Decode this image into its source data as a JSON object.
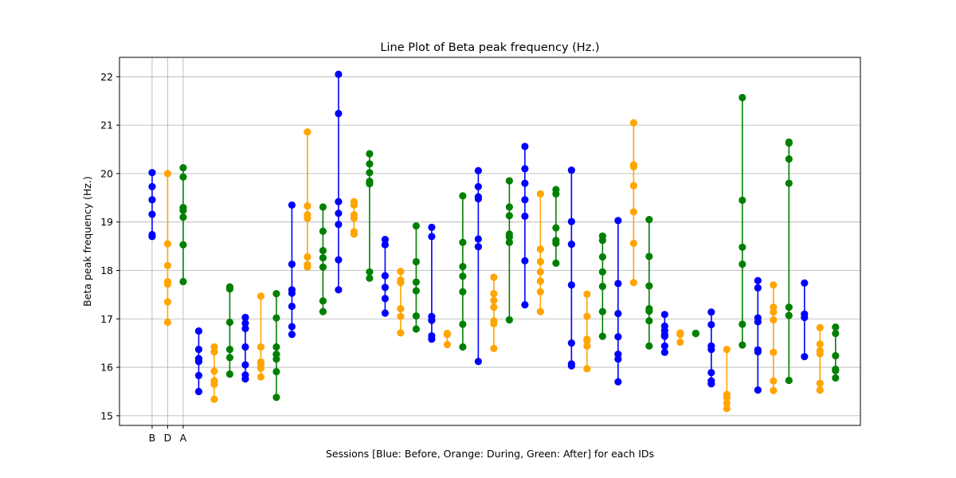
{
  "chart_data": {
    "type": "line",
    "title": "Line Plot of Beta peak frequency (Hz.)",
    "xlabel": "Sessions [Blue: Before, Orange: During, Green: After] for each IDs",
    "ylabel": "Beta peak frequency (Hz.)",
    "ylim": [
      14.8,
      22.4
    ],
    "xlim": [
      -2.1,
      45.6
    ],
    "yticks": [
      15,
      16,
      17,
      18,
      19,
      20,
      21,
      22
    ],
    "xticks": [
      {
        "x": 0,
        "label": "B"
      },
      {
        "x": 1,
        "label": "D"
      },
      {
        "x": 2,
        "label": "A"
      }
    ],
    "grid": true,
    "colors": {
      "Before": "#0000ff",
      "During": "#ffa500",
      "After": "#008000"
    },
    "groups": [
      {
        "x": 0,
        "session": "Before",
        "values": [
          20.02,
          19.73,
          19.46,
          19.16,
          18.74,
          18.7
        ]
      },
      {
        "x": 1,
        "session": "During",
        "values": [
          20.0,
          18.55,
          18.1,
          17.77,
          17.72,
          17.35,
          16.93
        ]
      },
      {
        "x": 2,
        "session": "After",
        "values": [
          20.12,
          19.93,
          19.3,
          19.24,
          19.1,
          18.53,
          17.77
        ]
      },
      {
        "x": 3,
        "session": "Before",
        "values": [
          16.75,
          16.37,
          16.18,
          16.12,
          15.83,
          15.5
        ]
      },
      {
        "x": 4,
        "session": "During",
        "values": [
          16.42,
          16.32,
          15.92,
          15.72,
          15.65,
          15.34
        ]
      },
      {
        "x": 5,
        "session": "After",
        "values": [
          17.66,
          17.62,
          16.93,
          16.37,
          16.2,
          15.86
        ]
      },
      {
        "x": 6,
        "session": "Before",
        "values": [
          17.03,
          16.91,
          16.8,
          16.42,
          16.05,
          15.84,
          15.76
        ]
      },
      {
        "x": 7,
        "session": "During",
        "values": [
          17.47,
          16.42,
          16.11,
          16.06,
          15.98,
          15.8
        ]
      },
      {
        "x": 8,
        "session": "After",
        "values": [
          17.52,
          17.02,
          16.42,
          16.27,
          16.17,
          15.91,
          15.38
        ]
      },
      {
        "x": 9,
        "session": "Before",
        "values": [
          19.35,
          18.13,
          17.6,
          17.53,
          17.26,
          16.84,
          16.68
        ]
      },
      {
        "x": 10,
        "session": "During",
        "values": [
          20.86,
          19.33,
          19.15,
          19.08,
          18.28,
          18.12,
          18.07
        ]
      },
      {
        "x": 11,
        "session": "After",
        "values": [
          19.31,
          18.81,
          18.41,
          18.26,
          18.07,
          17.37,
          17.15
        ]
      },
      {
        "x": 12,
        "session": "Before",
        "values": [
          22.05,
          21.24,
          19.42,
          19.18,
          18.95,
          18.22,
          17.6
        ]
      },
      {
        "x": 13,
        "session": "During",
        "values": [
          19.42,
          19.35,
          19.15,
          19.08,
          18.8,
          18.75
        ]
      },
      {
        "x": 14,
        "session": "After",
        "values": [
          20.41,
          20.2,
          20.02,
          19.84,
          19.79,
          17.97,
          17.84
        ]
      },
      {
        "x": 15,
        "session": "Before",
        "values": [
          18.64,
          18.53,
          17.89,
          17.65,
          17.42,
          17.12
        ]
      },
      {
        "x": 16,
        "session": "During",
        "values": [
          17.98,
          17.8,
          17.75,
          17.21,
          17.05,
          16.71
        ]
      },
      {
        "x": 17,
        "session": "After",
        "values": [
          18.92,
          18.18,
          17.76,
          17.58,
          17.06,
          16.79
        ]
      },
      {
        "x": 18,
        "session": "Before",
        "values": [
          18.89,
          18.7,
          17.05,
          16.97,
          16.65,
          16.58
        ]
      },
      {
        "x": 19,
        "session": "During",
        "values": [
          16.7,
          16.68,
          16.47
        ]
      },
      {
        "x": 20,
        "session": "After",
        "values": [
          19.54,
          18.58,
          18.08,
          17.88,
          17.56,
          16.89,
          16.42
        ]
      },
      {
        "x": 21,
        "session": "Before",
        "values": [
          20.06,
          19.73,
          19.52,
          19.48,
          18.65,
          18.49,
          16.12
        ]
      },
      {
        "x": 22,
        "session": "During",
        "values": [
          17.86,
          17.52,
          17.38,
          17.24,
          16.96,
          16.9,
          16.39
        ]
      },
      {
        "x": 23,
        "session": "After",
        "values": [
          19.85,
          19.31,
          19.13,
          18.75,
          18.69,
          18.58,
          16.98
        ]
      },
      {
        "x": 24,
        "session": "Before",
        "values": [
          20.56,
          20.1,
          19.8,
          19.46,
          19.12,
          18.2,
          17.29
        ]
      },
      {
        "x": 25,
        "session": "During",
        "values": [
          19.58,
          18.44,
          18.18,
          17.97,
          17.78,
          17.56,
          17.15
        ]
      },
      {
        "x": 26,
        "session": "After",
        "values": [
          19.67,
          19.58,
          18.88,
          18.62,
          18.56,
          18.15
        ]
      },
      {
        "x": 27,
        "session": "Before",
        "values": [
          20.07,
          19.01,
          18.54,
          17.7,
          16.5,
          16.07,
          16.03
        ]
      },
      {
        "x": 28,
        "session": "During",
        "values": [
          17.51,
          17.05,
          16.58,
          16.55,
          16.44,
          15.97
        ]
      },
      {
        "x": 29,
        "session": "After",
        "values": [
          18.71,
          18.62,
          18.28,
          17.97,
          17.67,
          17.15,
          16.64
        ]
      },
      {
        "x": 30,
        "session": "Before",
        "values": [
          19.03,
          17.73,
          17.11,
          16.63,
          16.27,
          16.17,
          15.7
        ]
      },
      {
        "x": 31,
        "session": "During",
        "values": [
          21.05,
          20.18,
          20.14,
          19.75,
          19.21,
          18.56,
          17.75
        ]
      },
      {
        "x": 32,
        "session": "After",
        "values": [
          19.05,
          18.29,
          17.68,
          17.21,
          17.16,
          16.96,
          16.44
        ]
      },
      {
        "x": 33,
        "session": "Before",
        "values": [
          17.09,
          16.85,
          16.76,
          16.68,
          16.64,
          16.44,
          16.31
        ]
      },
      {
        "x": 34,
        "session": "During",
        "values": [
          16.71,
          16.68,
          16.52
        ]
      },
      {
        "x": 35,
        "session": "After",
        "values": [
          16.7,
          16.7,
          16.7
        ]
      },
      {
        "x": 36,
        "session": "Before",
        "values": [
          17.14,
          16.88,
          16.44,
          16.37,
          15.89,
          15.72,
          15.66
        ]
      },
      {
        "x": 37,
        "session": "During",
        "values": [
          16.37,
          15.44,
          15.37,
          15.26,
          15.15
        ]
      },
      {
        "x": 38,
        "session": "After",
        "values": [
          21.57,
          19.45,
          18.48,
          18.13,
          16.89,
          16.46
        ]
      },
      {
        "x": 39,
        "session": "Before",
        "values": [
          17.79,
          17.64,
          17.02,
          16.94,
          16.36,
          16.32,
          15.53
        ]
      },
      {
        "x": 40,
        "session": "During",
        "values": [
          17.7,
          17.24,
          17.14,
          16.98,
          16.31,
          15.72,
          15.52
        ]
      },
      {
        "x": 41,
        "session": "After",
        "values": [
          20.65,
          20.63,
          20.3,
          19.8,
          17.24,
          17.07,
          15.73
        ]
      },
      {
        "x": 42,
        "session": "Before",
        "values": [
          17.74,
          17.1,
          17.03,
          16.22
        ]
      },
      {
        "x": 43,
        "session": "During",
        "values": [
          16.82,
          16.48,
          16.34,
          16.28,
          15.67,
          15.53
        ]
      },
      {
        "x": 44,
        "session": "After",
        "values": [
          16.83,
          16.7,
          16.24,
          15.96,
          15.93,
          15.78
        ]
      }
    ]
  }
}
